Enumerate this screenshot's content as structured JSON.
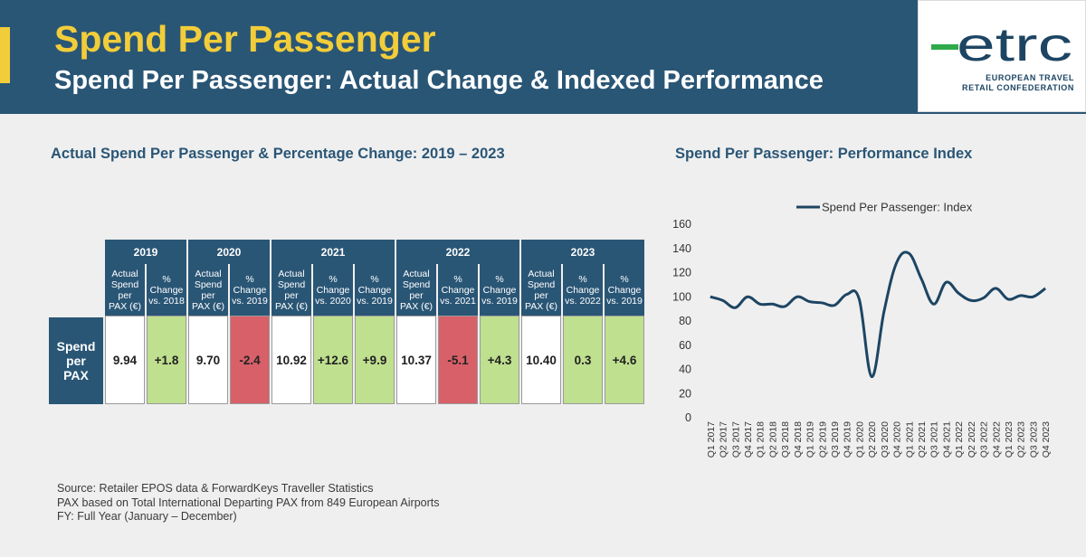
{
  "header": {
    "title": "Spend Per Passenger",
    "subtitle": "Spend Per Passenger: Actual Change & Indexed Performance"
  },
  "logo": {
    "word": "etrc",
    "line1": "EUROPEAN TRAVEL",
    "line2": "RETAIL CONFEDERATION"
  },
  "table_section": {
    "title": "Actual Spend Per Passenger & Percentage Change: 2019 – 2023",
    "row_label": [
      "Spend",
      "per",
      "PAX"
    ],
    "years": [
      {
        "year": "2019",
        "columns": [
          {
            "header": [
              "Actual",
              "Spend",
              "per",
              "PAX (€)"
            ],
            "value": "9.94",
            "status": "white"
          },
          {
            "header": [
              "%",
              "Change",
              "vs. 2018"
            ],
            "value": "+1.8",
            "status": "green"
          }
        ]
      },
      {
        "year": "2020",
        "columns": [
          {
            "header": [
              "Actual",
              "Spend",
              "per",
              "PAX (€)"
            ],
            "value": "9.70",
            "status": "white"
          },
          {
            "header": [
              "%",
              "Change",
              "vs. 2019"
            ],
            "value": "-2.4",
            "status": "red"
          }
        ]
      },
      {
        "year": "2021",
        "columns": [
          {
            "header": [
              "Actual",
              "Spend",
              "per",
              "PAX (€)"
            ],
            "value": "10.92",
            "status": "white"
          },
          {
            "header": [
              "%",
              "Change",
              "vs. 2020"
            ],
            "value": "+12.6",
            "status": "green"
          },
          {
            "header": [
              "%",
              "Change",
              "vs. 2019"
            ],
            "value": "+9.9",
            "status": "green"
          }
        ]
      },
      {
        "year": "2022",
        "columns": [
          {
            "header": [
              "Actual",
              "Spend",
              "per",
              "PAX (€)"
            ],
            "value": "10.37",
            "status": "white"
          },
          {
            "header": [
              "%",
              "Change",
              "vs. 2021"
            ],
            "value": "-5.1",
            "status": "red"
          },
          {
            "header": [
              "%",
              "Change",
              "vs. 2019"
            ],
            "value": "+4.3",
            "status": "green"
          }
        ]
      },
      {
        "year": "2023",
        "columns": [
          {
            "header": [
              "Actual",
              "Spend",
              "per",
              "PAX (€)"
            ],
            "value": "10.40",
            "status": "white"
          },
          {
            "header": [
              "%",
              "Change",
              "vs. 2022"
            ],
            "value": "0.3",
            "status": "green"
          },
          {
            "header": [
              "%",
              "Change",
              "vs. 2019"
            ],
            "value": "+4.6",
            "status": "green"
          }
        ]
      }
    ]
  },
  "colors": {
    "navy": "#2a5676",
    "yellow": "#f2cd3a",
    "green": "#bfe08f",
    "red": "#d86068",
    "logo_green": "#2eaa4a"
  },
  "chart_data": {
    "type": "line",
    "title": "Spend Per Passenger: Performance Index",
    "legend": "top",
    "grid": false,
    "ylim": [
      0,
      160
    ],
    "yticks": [
      0,
      20,
      40,
      60,
      80,
      100,
      120,
      140,
      160
    ],
    "categories": [
      "Q1 2017",
      "Q2 2017",
      "Q3 2017",
      "Q4 2017",
      "Q1 2018",
      "Q2 2018",
      "Q3 2018",
      "Q4 2018",
      "Q1 2019",
      "Q2 2019",
      "Q3 2019",
      "Q4 2019",
      "Q1 2020",
      "Q2 2020",
      "Q3 2020",
      "Q4 2020",
      "Q1 2021",
      "Q2 2021",
      "Q3 2021",
      "Q4 2021",
      "Q1 2022",
      "Q2 2022",
      "Q3 2022",
      "Q4 2022",
      "Q1 2023",
      "Q2 2023",
      "Q3 2023",
      "Q4 2023"
    ],
    "series": [
      {
        "name": "Spend Per Passenger: Index",
        "color": "#1d4563",
        "values": [
          100,
          97,
          91,
          100,
          94,
          94,
          92,
          100,
          96,
          95,
          93,
          102,
          98,
          34,
          88,
          128,
          136,
          115,
          94,
          112,
          103,
          97,
          99,
          107,
          98,
          101,
          100,
          107
        ]
      }
    ]
  },
  "footer": {
    "lines": [
      "Source: Retailer EPOS data & ForwardKeys Traveller Statistics",
      "PAX based on Total International Departing PAX from 849 European Airports",
      "FY: Full Year (January – December)"
    ]
  }
}
